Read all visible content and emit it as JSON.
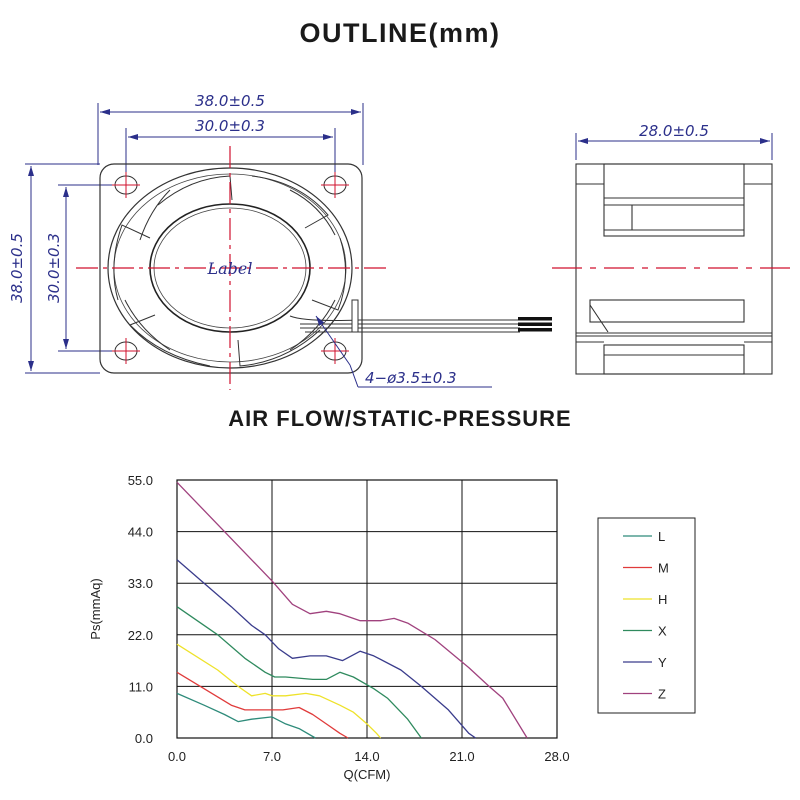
{
  "outline": {
    "title": "OUTLINE(mm)",
    "front_view": {
      "width_outer": "38.0±0.5",
      "width_holes": "30.0±0.3",
      "height_outer": "38.0±0.5",
      "height_holes": "30.0±0.3",
      "hub_label": "Label",
      "mount_holes": "4−ø3.5±0.3"
    },
    "side_view": {
      "depth": "28.0±0.5"
    }
  },
  "colors": {
    "dimension": "#2b2f8a",
    "centerline": "#d0122e",
    "drawing": "#333333",
    "grid": "#111111"
  },
  "chart_data": {
    "type": "line",
    "title": "AIR FLOW/STATIC-PRESSURE",
    "xlabel": "Q(CFM)",
    "ylabel": "Ps(mmAq)",
    "xlim": [
      0,
      28
    ],
    "ylim": [
      0,
      55
    ],
    "x_ticks": [
      "0.0",
      "7.0",
      "14.0",
      "21.0",
      "28.0"
    ],
    "y_ticks": [
      "0.0",
      "11.0",
      "22.0",
      "33.0",
      "44.0",
      "55.0"
    ],
    "grid": true,
    "legend_position": "right",
    "series": [
      {
        "name": "L",
        "color": "#2e8b7a",
        "points": [
          [
            0,
            9.5
          ],
          [
            2,
            7
          ],
          [
            3.5,
            5
          ],
          [
            4.5,
            3.5
          ],
          [
            5.5,
            4
          ],
          [
            7,
            4.5
          ],
          [
            8,
            3
          ],
          [
            9,
            2
          ],
          [
            10.2,
            0
          ]
        ]
      },
      {
        "name": "M",
        "color": "#e03b3b",
        "points": [
          [
            0,
            14
          ],
          [
            2,
            10.5
          ],
          [
            4,
            7
          ],
          [
            5,
            6
          ],
          [
            7,
            6
          ],
          [
            7.8,
            6
          ],
          [
            9,
            6.5
          ],
          [
            10,
            5
          ],
          [
            11,
            3
          ],
          [
            12,
            1
          ],
          [
            12.6,
            0
          ]
        ]
      },
      {
        "name": "H",
        "color": "#eee22a",
        "points": [
          [
            0,
            20
          ],
          [
            3,
            14.5
          ],
          [
            4.5,
            11
          ],
          [
            5.5,
            9
          ],
          [
            6.5,
            9.5
          ],
          [
            7,
            9
          ],
          [
            8,
            9
          ],
          [
            9.5,
            9.5
          ],
          [
            10.5,
            9
          ],
          [
            12,
            7
          ],
          [
            13,
            5.5
          ],
          [
            14,
            3
          ],
          [
            14.7,
            1
          ],
          [
            15,
            0
          ]
        ]
      },
      {
        "name": "X",
        "color": "#2f8a5e",
        "points": [
          [
            0,
            28
          ],
          [
            3,
            22
          ],
          [
            5,
            17
          ],
          [
            6.5,
            14
          ],
          [
            7.2,
            13
          ],
          [
            8,
            13
          ],
          [
            10,
            12.5
          ],
          [
            11,
            12.5
          ],
          [
            12,
            14
          ],
          [
            13,
            13
          ],
          [
            14.5,
            10.5
          ],
          [
            15.5,
            8.5
          ],
          [
            17,
            4
          ],
          [
            18,
            0
          ]
        ]
      },
      {
        "name": "Y",
        "color": "#3a3c8c",
        "points": [
          [
            0,
            38
          ],
          [
            2,
            33
          ],
          [
            4,
            28
          ],
          [
            5.5,
            24
          ],
          [
            6.5,
            22
          ],
          [
            7.5,
            19
          ],
          [
            8.5,
            17
          ],
          [
            9.8,
            17.5
          ],
          [
            11,
            17.5
          ],
          [
            12.2,
            16.5
          ],
          [
            13.5,
            18.5
          ],
          [
            14.5,
            17.5
          ],
          [
            16.5,
            14.5
          ],
          [
            18,
            11
          ],
          [
            20,
            6
          ],
          [
            21.5,
            1
          ],
          [
            22,
            0
          ]
        ]
      },
      {
        "name": "Z",
        "color": "#a0427e",
        "points": [
          [
            0,
            54.5
          ],
          [
            7,
            33.5
          ],
          [
            8.5,
            28.5
          ],
          [
            9.8,
            26.5
          ],
          [
            11,
            27
          ],
          [
            12,
            26.5
          ],
          [
            13.5,
            25
          ],
          [
            15,
            25
          ],
          [
            16,
            25.5
          ],
          [
            17,
            24.5
          ],
          [
            19,
            21
          ],
          [
            21.5,
            15
          ],
          [
            23,
            11
          ],
          [
            24,
            8.5
          ],
          [
            25.8,
            0
          ]
        ]
      }
    ]
  }
}
